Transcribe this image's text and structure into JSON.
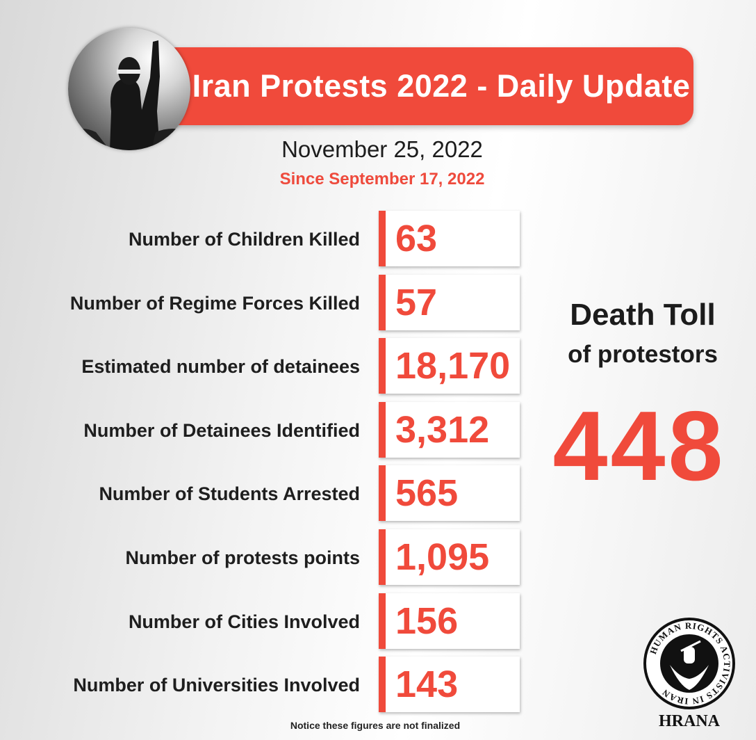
{
  "header": {
    "title": "Iran Protests 2022 - Daily Update",
    "date": "November 25, 2022",
    "since": "Since September 17, 2022"
  },
  "stats": [
    {
      "label": "Number of Children Killed",
      "value": "63"
    },
    {
      "label": "Number of Regime Forces Killed",
      "value": "57"
    },
    {
      "label": "Estimated number of detainees",
      "value": "18,170"
    },
    {
      "label": "Number of Detainees Identified",
      "value": "3,312"
    },
    {
      "label": "Number of Students Arrested",
      "value": "565"
    },
    {
      "label": "Number of protests points",
      "value": "1,095"
    },
    {
      "label": "Number of Cities Involved",
      "value": "156"
    },
    {
      "label": "Number of Universities Involved",
      "value": "143"
    }
  ],
  "death_toll": {
    "title": "Death Toll",
    "subtitle": "of protestors",
    "value": "448"
  },
  "notice": "Notice these figures are not finalized",
  "logo": {
    "ring_text": "HUMAN RIGHTS ACTIVISTS IN IRAN",
    "name": "HRANA"
  },
  "colors": {
    "accent": "#f04a3b",
    "text": "#1c1c1c"
  }
}
